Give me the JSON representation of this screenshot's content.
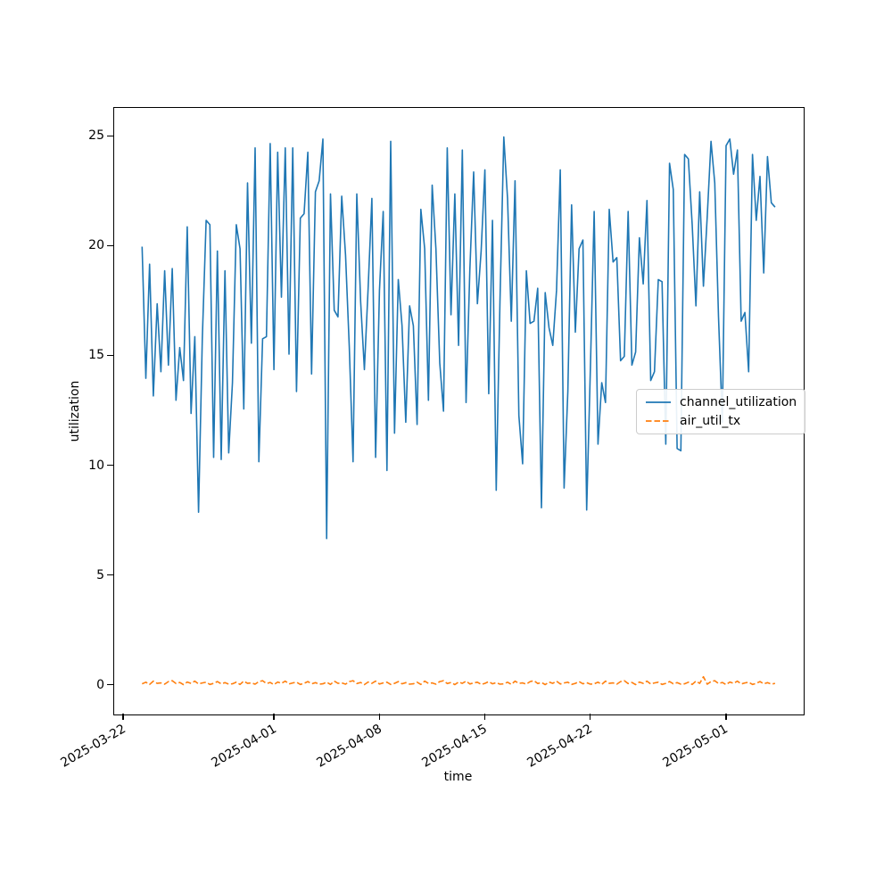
{
  "figure": {
    "background": "#ffffff",
    "frame_color": "#000000"
  },
  "axes": {
    "xlabel": "time",
    "ylabel": "utilization",
    "x_start_date": "2025-03-22",
    "x_ticks": [
      {
        "day": 0,
        "label": "2025-03-22"
      },
      {
        "day": 10,
        "label": "2025-04-01"
      },
      {
        "day": 17,
        "label": "2025-04-08"
      },
      {
        "day": 24,
        "label": "2025-04-15"
      },
      {
        "day": 31,
        "label": "2025-04-22"
      },
      {
        "day": 40,
        "label": "2025-05-01"
      }
    ],
    "y_ticks": [
      0,
      5,
      10,
      15,
      20,
      25
    ],
    "xlim_days": [
      -0.65,
      45.1
    ],
    "ylim": [
      -1.32,
      26.32
    ],
    "x_tick_rotation_deg": 30,
    "grid": false
  },
  "legend": {
    "position": "center-right",
    "entries": [
      {
        "label": "channel_utilization",
        "color": "#1f77b4",
        "style": "solid"
      },
      {
        "label": "air_util_tx",
        "color": "#ff7f0e",
        "style": "dashed"
      }
    ]
  },
  "chart_data": {
    "type": "line",
    "title": "",
    "xlabel": "time",
    "ylabel": "utilization",
    "x_axis": {
      "start_date": "2025-03-22",
      "unit": "days_since_start"
    },
    "xlim": [
      -0.65,
      45.1
    ],
    "ylim": [
      -1.32,
      26.32
    ],
    "legend_position": "center-right",
    "grid": false,
    "series": [
      {
        "name": "channel_utilization",
        "color": "#1f77b4",
        "line_style": "solid",
        "x_start_day": 1.2,
        "x_step_day": 0.25,
        "values": [
          20.0,
          14.0,
          19.2,
          13.2,
          17.4,
          14.3,
          18.9,
          14.6,
          19.0,
          13.0,
          15.4,
          13.9,
          20.9,
          12.4,
          15.9,
          7.9,
          15.8,
          21.2,
          21.0,
          10.4,
          19.8,
          10.3,
          18.9,
          10.6,
          13.8,
          21.0,
          19.9,
          12.6,
          22.9,
          15.6,
          24.5,
          10.2,
          15.8,
          15.9,
          24.7,
          14.4,
          24.3,
          17.7,
          24.5,
          15.1,
          24.5,
          13.4,
          21.3,
          21.5,
          24.3,
          14.2,
          22.5,
          23.0,
          24.9,
          6.7,
          22.4,
          17.1,
          16.8,
          22.3,
          19.6,
          15.4,
          10.2,
          22.4,
          17.5,
          14.4,
          18.1,
          22.2,
          10.4,
          18.0,
          21.6,
          9.8,
          24.8,
          11.5,
          18.5,
          16.4,
          12.0,
          17.3,
          16.4,
          11.9,
          21.7,
          19.9,
          13.0,
          22.8,
          19.9,
          14.7,
          12.5,
          24.5,
          16.9,
          22.4,
          15.5,
          24.4,
          12.9,
          18.9,
          23.4,
          17.4,
          19.8,
          23.5,
          13.3,
          21.2,
          8.9,
          17.5,
          25.0,
          22.2,
          16.6,
          23.0,
          12.3,
          10.1,
          18.9,
          16.5,
          16.6,
          18.1,
          8.1,
          17.9,
          16.3,
          15.5,
          18.0,
          23.5,
          9.0,
          13.4,
          21.9,
          16.1,
          19.9,
          20.3,
          8.0,
          14.5,
          21.6,
          11.0,
          13.8,
          12.9,
          21.7,
          19.3,
          19.5,
          14.8,
          15.0,
          21.6,
          14.6,
          15.2,
          20.4,
          18.3,
          22.1,
          13.9,
          14.3,
          18.5,
          18.4,
          11.0,
          23.8,
          22.6,
          10.8,
          10.7,
          24.2,
          24.0,
          21.0,
          17.3,
          22.5,
          18.2,
          21.4,
          24.8,
          22.9,
          16.8,
          12.0,
          24.6,
          24.9,
          23.3,
          24.4,
          16.6,
          17.0,
          14.3,
          24.2,
          21.2,
          23.2,
          18.8,
          24.1,
          22.0,
          21.8
        ]
      },
      {
        "name": "air_util_tx",
        "color": "#ff7f0e",
        "line_style": "dashed",
        "x_start_day": 1.2,
        "x_step_day": 0.25,
        "values": [
          0.08,
          0.15,
          0.05,
          0.2,
          0.1,
          0.12,
          0.06,
          0.18,
          0.22,
          0.09,
          0.14,
          0.04,
          0.16,
          0.1,
          0.2,
          0.07,
          0.12,
          0.15,
          0.05,
          0.1,
          0.18,
          0.08,
          0.13,
          0.06,
          0.08,
          0.15,
          0.05,
          0.2,
          0.1,
          0.12,
          0.06,
          0.18,
          0.22,
          0.09,
          0.14,
          0.04,
          0.16,
          0.1,
          0.2,
          0.07,
          0.12,
          0.15,
          0.05,
          0.1,
          0.18,
          0.08,
          0.13,
          0.06,
          0.08,
          0.15,
          0.05,
          0.2,
          0.1,
          0.12,
          0.06,
          0.18,
          0.22,
          0.09,
          0.14,
          0.04,
          0.16,
          0.1,
          0.2,
          0.07,
          0.12,
          0.15,
          0.05,
          0.1,
          0.18,
          0.08,
          0.13,
          0.06,
          0.08,
          0.15,
          0.05,
          0.2,
          0.1,
          0.12,
          0.06,
          0.18,
          0.22,
          0.09,
          0.14,
          0.04,
          0.16,
          0.1,
          0.2,
          0.07,
          0.12,
          0.15,
          0.05,
          0.1,
          0.18,
          0.08,
          0.13,
          0.06,
          0.08,
          0.15,
          0.05,
          0.2,
          0.1,
          0.12,
          0.06,
          0.18,
          0.22,
          0.09,
          0.14,
          0.04,
          0.16,
          0.1,
          0.2,
          0.07,
          0.12,
          0.15,
          0.05,
          0.1,
          0.18,
          0.08,
          0.13,
          0.06,
          0.08,
          0.15,
          0.05,
          0.2,
          0.1,
          0.12,
          0.06,
          0.18,
          0.22,
          0.09,
          0.14,
          0.04,
          0.16,
          0.1,
          0.2,
          0.07,
          0.12,
          0.15,
          0.05,
          0.1,
          0.18,
          0.08,
          0.13,
          0.06,
          0.08,
          0.15,
          0.05,
          0.2,
          0.1,
          0.4,
          0.06,
          0.18,
          0.22,
          0.09,
          0.14,
          0.04,
          0.16,
          0.1,
          0.2,
          0.07,
          0.12,
          0.15,
          0.05,
          0.1,
          0.18,
          0.08,
          0.13,
          0.06,
          0.1
        ]
      }
    ]
  }
}
